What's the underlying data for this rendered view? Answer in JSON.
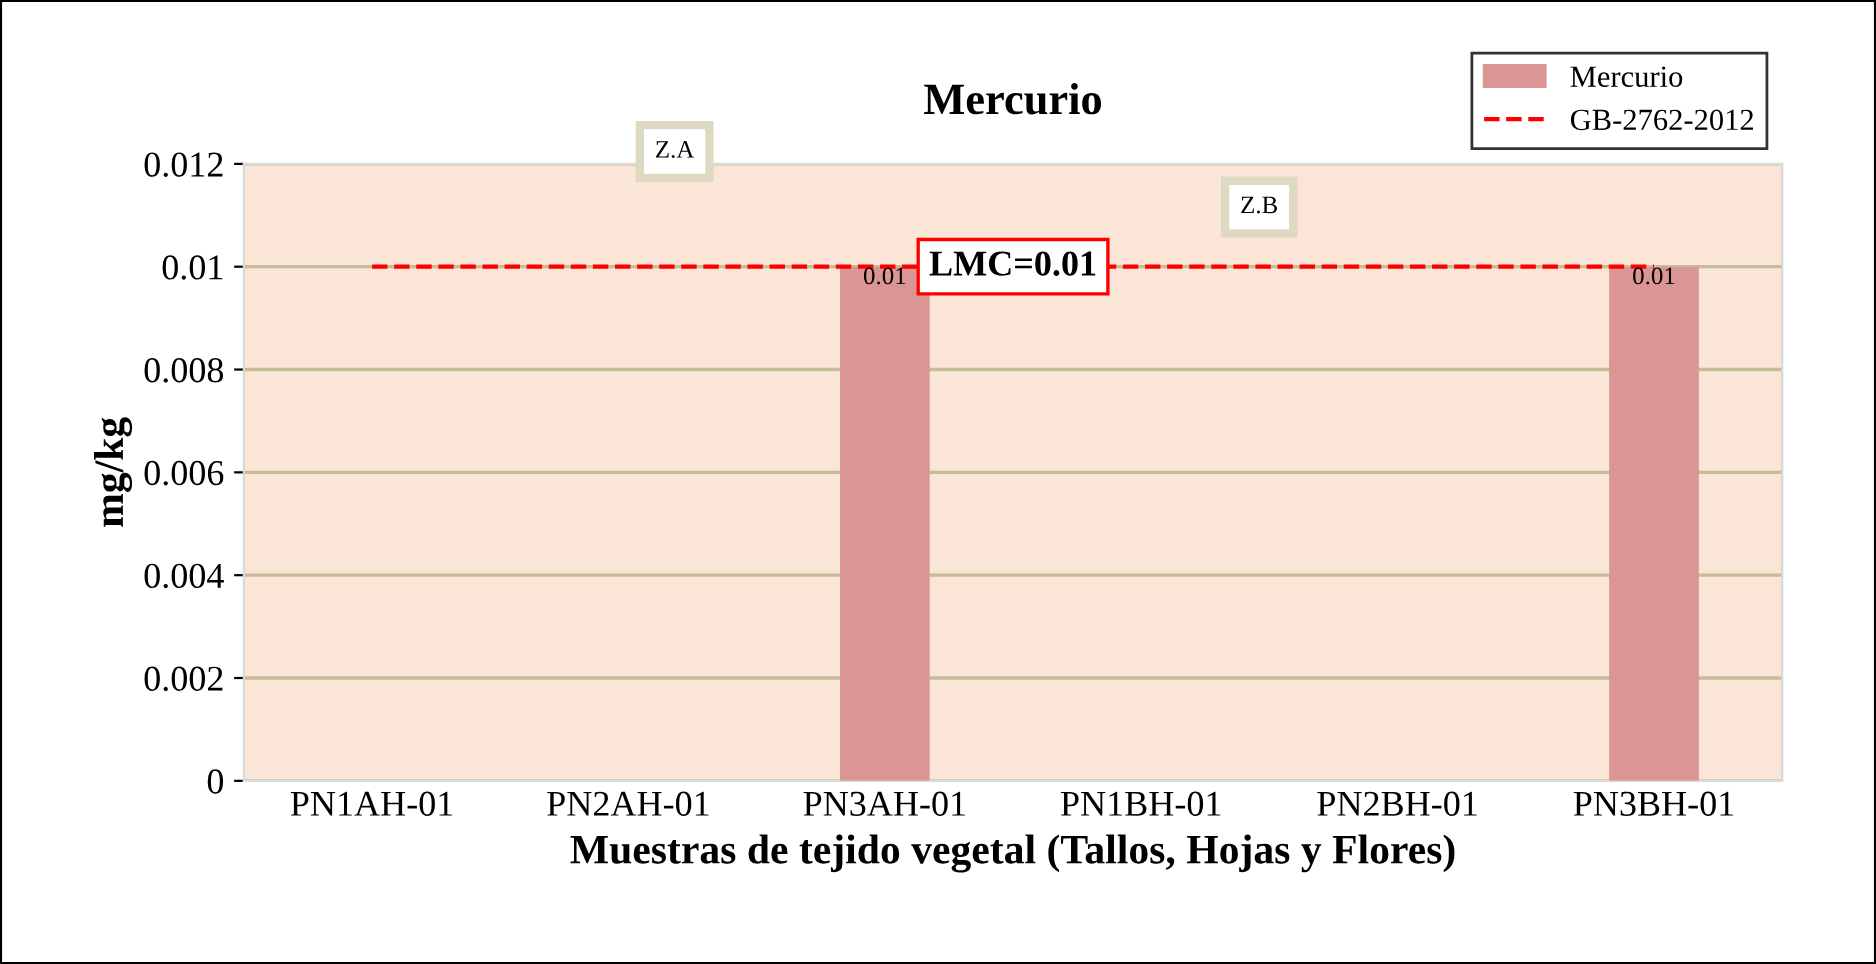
{
  "chart_data": {
    "type": "bar",
    "title": "Mercurio",
    "xlabel": "Muestras de tejido vegetal (Tallos, Hojas y Flores)",
    "ylabel": "mg/kg",
    "categories": [
      "PN1AH-01",
      "PN2AH-01",
      "PN3AH-01",
      "PN1BH-01",
      "PN2BH-01",
      "PN3BH-01"
    ],
    "series": [
      {
        "name": "Mercurio",
        "color": "#d99694",
        "values": [
          0,
          0,
          0.01,
          0,
          0,
          0.01
        ],
        "value_labels": [
          null,
          null,
          "0.01",
          null,
          null,
          "0.01"
        ]
      }
    ],
    "ref_lines": [
      {
        "axis": "y",
        "value": 0.01,
        "label": "GB-2762-2012",
        "color": "#ff0000",
        "line_style": "dashed"
      }
    ],
    "annotations": [
      {
        "text": "LMC=0.01",
        "y": 0.01
      },
      "Z.A",
      "Z.B"
    ],
    "ylim": [
      0,
      0.012
    ],
    "yticks": [
      0,
      0.002,
      0.004,
      0.006,
      0.008,
      0.01,
      0.012
    ],
    "grid": "y",
    "legend": "top right"
  }
}
